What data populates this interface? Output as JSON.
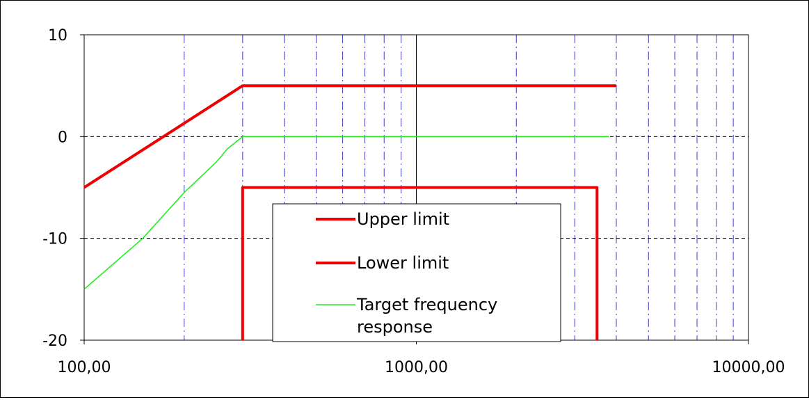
{
  "chart_data": {
    "type": "line",
    "title": "",
    "xlabel": "",
    "ylabel": "",
    "x_scale": "log",
    "xlim": [
      100,
      10000
    ],
    "ylim": [
      -20,
      10
    ],
    "x_tick_labels": [
      "100,00",
      "1000,00",
      "10000,00"
    ],
    "x_tick_values": [
      100,
      1000,
      10000
    ],
    "y_tick_labels": [
      "10",
      "0",
      "-10",
      "-20"
    ],
    "y_tick_values": [
      10,
      0,
      -10,
      -20
    ],
    "grid": {
      "horizontal_major": true,
      "vertical_minor": true,
      "vertical_minor_color": "#3a3ac8",
      "horizontal_color": "#000000"
    },
    "legend_position": "bottom-center",
    "series": [
      {
        "name": "Upper limit",
        "color": "#ee0000",
        "points": [
          [
            100,
            -5
          ],
          [
            300,
            5
          ],
          [
            4000,
            5
          ]
        ]
      },
      {
        "name": "Lower limit",
        "color": "#ee0000",
        "points": [
          [
            300,
            -20
          ],
          [
            300,
            -5
          ],
          [
            3500,
            -5
          ],
          [
            3500,
            -20
          ]
        ]
      },
      {
        "name": "Target frequency response",
        "color": "#22ee22",
        "points": [
          [
            100,
            -15
          ],
          [
            150,
            -10
          ],
          [
            200,
            -5.5
          ],
          [
            250,
            -2.5
          ],
          [
            270,
            -1.2
          ],
          [
            300,
            0
          ],
          [
            3800,
            0
          ]
        ]
      }
    ],
    "legend": [
      {
        "label": "Upper limit",
        "color": "#ee0000"
      },
      {
        "label": "Lower limit",
        "color": "#ee0000"
      },
      {
        "label": "Target frequency response",
        "color": "#22ee22"
      }
    ]
  }
}
